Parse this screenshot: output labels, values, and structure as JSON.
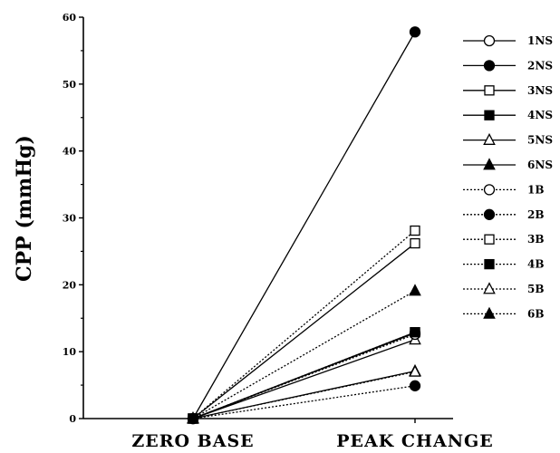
{
  "chart_data": {
    "type": "line",
    "title": "",
    "xlabel": "",
    "ylabel": "CPP (mmHg)",
    "categories": [
      "ZERO BASE",
      "PEAK CHANGE"
    ],
    "ylim": [
      0,
      60
    ],
    "yticks": [
      0,
      10,
      20,
      30,
      40,
      50,
      60
    ],
    "grid": false,
    "legend_position": "right",
    "series": [
      {
        "name": "1NS",
        "line": "solid",
        "marker": "circle-open",
        "values": [
          0,
          12.8
        ]
      },
      {
        "name": "2NS",
        "line": "solid",
        "marker": "circle-filled",
        "values": [
          0,
          57.8
        ]
      },
      {
        "name": "3NS",
        "line": "solid",
        "marker": "square-open",
        "values": [
          0,
          26.2
        ]
      },
      {
        "name": "4NS",
        "line": "solid",
        "marker": "square-filled",
        "values": [
          0,
          12.9
        ]
      },
      {
        "name": "5NS",
        "line": "solid",
        "marker": "triangle-open",
        "values": [
          0,
          11.8
        ]
      },
      {
        "name": "6NS",
        "line": "solid",
        "marker": "triangle-filled",
        "values": [
          0,
          7.1
        ]
      },
      {
        "name": "1B",
        "line": "dotted",
        "marker": "circle-open",
        "values": [
          0,
          12.6
        ]
      },
      {
        "name": "2B",
        "line": "dotted",
        "marker": "circle-filled",
        "values": [
          0,
          4.9
        ]
      },
      {
        "name": "3B",
        "line": "dotted",
        "marker": "square-open",
        "values": [
          0,
          28.1
        ]
      },
      {
        "name": "4B",
        "line": "dotted",
        "marker": "square-filled",
        "values": [
          0,
          12.9
        ]
      },
      {
        "name": "5B",
        "line": "dotted",
        "marker": "triangle-open",
        "values": [
          0,
          7.0
        ]
      },
      {
        "name": "6B",
        "line": "dotted",
        "marker": "triangle-filled",
        "values": [
          0,
          19.1
        ]
      }
    ]
  }
}
